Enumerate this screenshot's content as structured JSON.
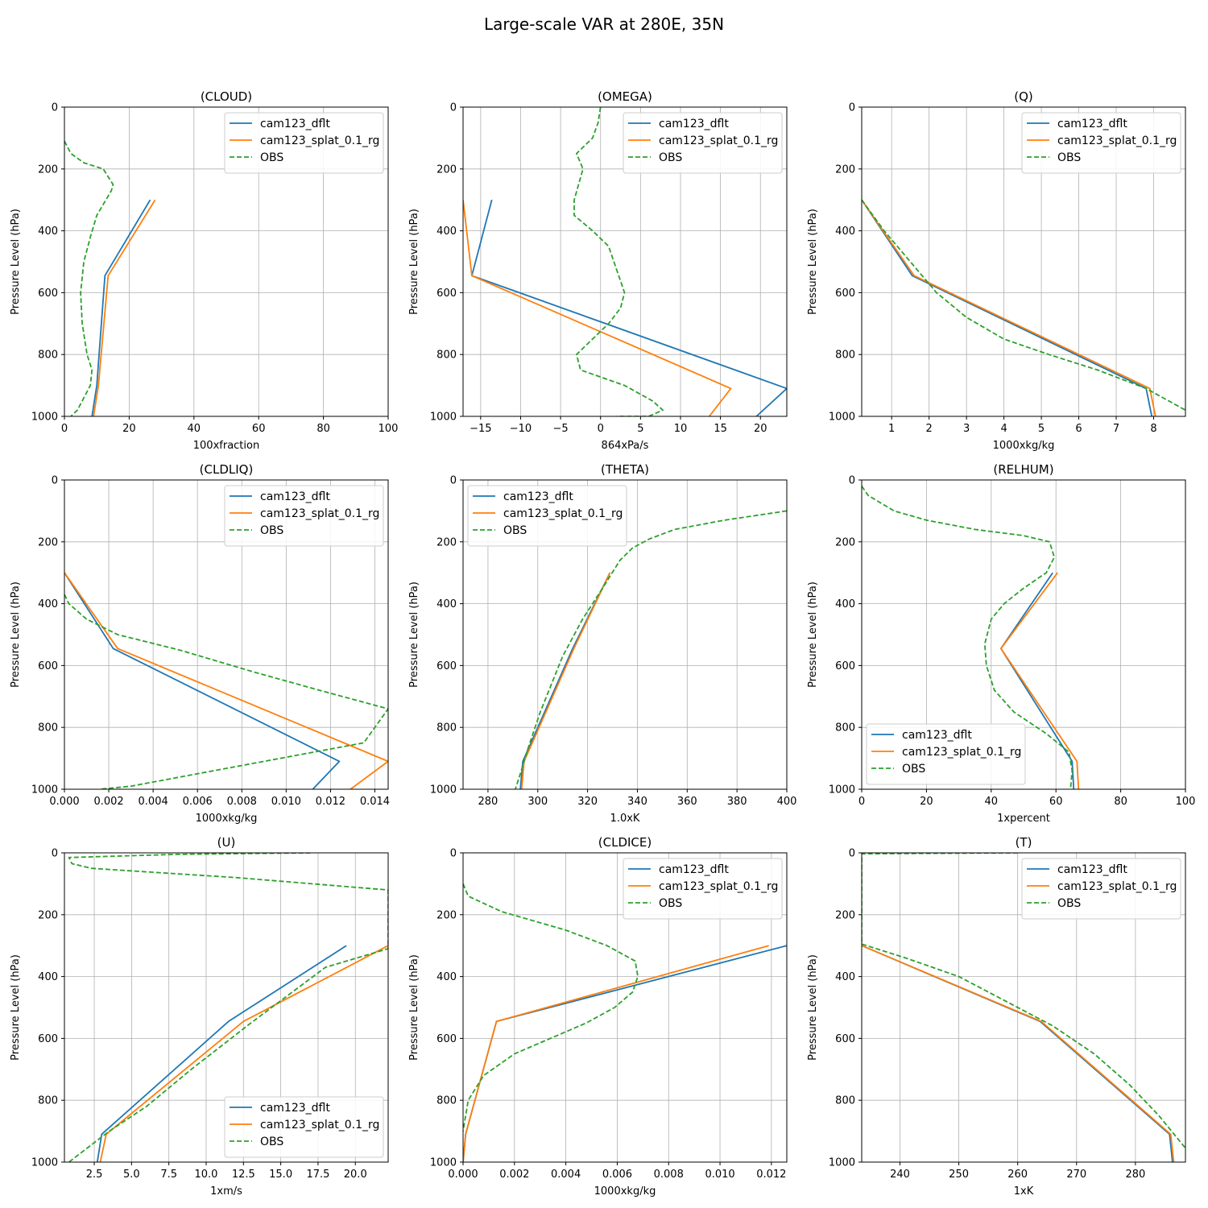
{
  "title": "Large-scale VAR at 280E, 35N",
  "series_names": [
    "cam123_dflt",
    "cam123_splat_0.1_rg",
    "OBS"
  ],
  "colors": {
    "cam123_dflt": "#1f77b4",
    "cam123_splat_0.1_rg": "#ff7f0e",
    "OBS": "#2ca02c"
  },
  "chart_data": [
    {
      "type": "line",
      "title": "(CLOUD)",
      "xlabel": "100xfraction",
      "ylabel": "Pressure Level (hPa)",
      "xlim": [
        0,
        100
      ],
      "ylim": [
        1000,
        0
      ],
      "y_inverted": true,
      "grid": true,
      "legend": "top-right",
      "xticks": [
        0,
        20,
        40,
        60,
        80,
        100
      ],
      "xtick_labels": [
        "0",
        "20",
        "40",
        "60",
        "80",
        "100"
      ],
      "yticks": [
        0,
        200,
        400,
        600,
        800,
        1000
      ],
      "ytick_labels": [
        "0",
        "200",
        "400",
        "600",
        "800",
        "1000"
      ],
      "series": [
        {
          "name": "cam123_dflt",
          "style": "solid",
          "x": [
            26.5,
            12.5,
            10.0,
            8.5
          ],
          "y": [
            300,
            545,
            900,
            1000
          ]
        },
        {
          "name": "cam123_splat_0.1_rg",
          "style": "solid",
          "x": [
            28,
            13.5,
            10.5,
            9.0
          ],
          "y": [
            300,
            545,
            900,
            1000
          ]
        },
        {
          "name": "OBS",
          "style": "dashed",
          "x": [
            0,
            2,
            6,
            12,
            15,
            14.5,
            10,
            8,
            6,
            5,
            5.5,
            7,
            8.5,
            8,
            6,
            4,
            2
          ],
          "y": [
            110,
            150,
            180,
            200,
            250,
            270,
            350,
            420,
            500,
            600,
            700,
            800,
            850,
            900,
            940,
            980,
            1000
          ]
        }
      ]
    },
    {
      "type": "line",
      "title": "(OMEGA)",
      "xlabel": "864xPa/s",
      "ylabel": "Pressure Level (hPa)",
      "xlim": [
        -17.2,
        23.3
      ],
      "ylim": [
        1000,
        0
      ],
      "y_inverted": true,
      "grid": true,
      "legend": "top-right",
      "xticks": [
        -15,
        -10,
        -5,
        0,
        5,
        10,
        15,
        20
      ],
      "xtick_labels": [
        "−15",
        "−10",
        "−5",
        "0",
        "5",
        "10",
        "15",
        "20"
      ],
      "yticks": [
        0,
        200,
        400,
        600,
        800,
        1000
      ],
      "ytick_labels": [
        "0",
        "200",
        "400",
        "600",
        "800",
        "1000"
      ],
      "series": [
        {
          "name": "cam123_dflt",
          "style": "solid",
          "x": [
            -13.6,
            -16.1,
            23.3,
            19.5
          ],
          "y": [
            300,
            545,
            910,
            1000
          ]
        },
        {
          "name": "cam123_splat_0.1_rg",
          "style": "solid",
          "x": [
            -17.2,
            -16.1,
            16.3,
            13.6
          ],
          "y": [
            300,
            545,
            910,
            1000
          ]
        },
        {
          "name": "OBS",
          "style": "dashed",
          "x": [
            0,
            -0.3,
            -1,
            -3,
            -2.2,
            -3.3,
            -3.3,
            -1,
            1,
            3,
            2.5,
            1,
            -3,
            -2.5,
            3,
            6.5,
            7.8,
            6,
            2
          ],
          "y": [
            0,
            50,
            100,
            150,
            200,
            300,
            350,
            400,
            450,
            600,
            650,
            700,
            800,
            850,
            900,
            950,
            980,
            1000,
            1000
          ]
        }
      ]
    },
    {
      "type": "line",
      "title": "(Q)",
      "xlabel": "1000xkg/kg",
      "ylabel": "Pressure Level (hPa)",
      "xlim": [
        0.2,
        8.85
      ],
      "ylim": [
        1000,
        0
      ],
      "y_inverted": true,
      "grid": true,
      "legend": "top-right",
      "xticks": [
        1,
        2,
        3,
        4,
        5,
        6,
        7,
        8
      ],
      "xtick_labels": [
        "1",
        "2",
        "3",
        "4",
        "5",
        "6",
        "7",
        "8"
      ],
      "yticks": [
        0,
        200,
        400,
        600,
        800,
        1000
      ],
      "ytick_labels": [
        "0",
        "200",
        "400",
        "600",
        "800",
        "1000"
      ],
      "series": [
        {
          "name": "cam123_dflt",
          "style": "solid",
          "x": [
            0.2,
            1.55,
            7.8,
            7.95
          ],
          "y": [
            300,
            545,
            910,
            1000
          ]
        },
        {
          "name": "cam123_splat_0.1_rg",
          "style": "solid",
          "x": [
            0.2,
            1.6,
            7.9,
            8.05
          ],
          "y": [
            300,
            545,
            910,
            1000
          ]
        },
        {
          "name": "OBS",
          "style": "dashed",
          "x": [
            0.2,
            0.8,
            1.5,
            2.2,
            3.0,
            4.0,
            5.2,
            6.5,
            7.8,
            8.85
          ],
          "y": [
            300,
            400,
            500,
            600,
            680,
            750,
            800,
            850,
            910,
            980
          ]
        }
      ]
    },
    {
      "type": "line",
      "title": "(CLDLIQ)",
      "xlabel": "1000xkg/kg",
      "ylabel": "Pressure Level (hPa)",
      "xlim": [
        0,
        0.0146
      ],
      "ylim": [
        1000,
        0
      ],
      "y_inverted": true,
      "grid": true,
      "legend": "top-right",
      "xticks": [
        0,
        0.002,
        0.004,
        0.006,
        0.008,
        0.01,
        0.012,
        0.014
      ],
      "xtick_labels": [
        "0.000",
        "0.002",
        "0.004",
        "0.006",
        "0.008",
        "0.010",
        "0.012",
        "0.014"
      ],
      "yticks": [
        0,
        200,
        400,
        600,
        800,
        1000
      ],
      "ytick_labels": [
        "0",
        "200",
        "400",
        "600",
        "800",
        "1000"
      ],
      "series": [
        {
          "name": "cam123_dflt",
          "style": "solid",
          "x": [
            0,
            0.0022,
            0.0124,
            0.0112
          ],
          "y": [
            300,
            545,
            910,
            1000
          ]
        },
        {
          "name": "cam123_splat_0.1_rg",
          "style": "solid",
          "x": [
            0,
            0.0024,
            0.0146,
            0.0129
          ],
          "y": [
            300,
            545,
            910,
            1000
          ]
        },
        {
          "name": "OBS",
          "style": "dashed",
          "x": [
            0,
            0.0002,
            0.001,
            0.0024,
            0.0052,
            0.0085,
            0.0115,
            0.0146,
            0.0135,
            0.009,
            0.006,
            0.003,
            0.0016
          ],
          "y": [
            370,
            400,
            450,
            500,
            550,
            620,
            680,
            740,
            850,
            910,
            950,
            990,
            1000
          ]
        }
      ]
    },
    {
      "type": "line",
      "title": "(THETA)",
      "xlabel": "1.0xK",
      "ylabel": "Pressure Level (hPa)",
      "xlim": [
        270,
        400
      ],
      "ylim": [
        1000,
        0
      ],
      "y_inverted": true,
      "grid": true,
      "legend": "top-left",
      "xticks": [
        280,
        300,
        320,
        340,
        360,
        380,
        400
      ],
      "xtick_labels": [
        "280",
        "300",
        "320",
        "340",
        "360",
        "380",
        "400"
      ],
      "yticks": [
        0,
        200,
        400,
        600,
        800,
        1000
      ],
      "ytick_labels": [
        "0",
        "200",
        "400",
        "600",
        "800",
        "1000"
      ],
      "series": [
        {
          "name": "cam123_dflt",
          "style": "solid",
          "x": [
            329,
            314,
            294,
            293
          ],
          "y": [
            300,
            545,
            910,
            1000
          ]
        },
        {
          "name": "cam123_splat_0.1_rg",
          "style": "solid",
          "x": [
            329,
            314.5,
            294.5,
            293.5
          ],
          "y": [
            300,
            545,
            910,
            1000
          ]
        },
        {
          "name": "OBS",
          "style": "dashed",
          "x": [
            400,
            375,
            355,
            345,
            338,
            333,
            326,
            318,
            310,
            301,
            296,
            293,
            291
          ],
          "y": [
            100,
            130,
            160,
            190,
            220,
            260,
            350,
            450,
            570,
            750,
            870,
            950,
            1000
          ]
        }
      ]
    },
    {
      "type": "line",
      "title": "(RELHUM)",
      "xlabel": "1xpercent",
      "ylabel": "Pressure Level (hPa)",
      "xlim": [
        0,
        100
      ],
      "ylim": [
        1000,
        0
      ],
      "y_inverted": true,
      "grid": true,
      "legend": "bottom-left",
      "xticks": [
        0,
        20,
        40,
        60,
        80,
        100
      ],
      "xtick_labels": [
        "0",
        "20",
        "40",
        "60",
        "80",
        "100"
      ],
      "yticks": [
        0,
        200,
        400,
        600,
        800,
        1000
      ],
      "ytick_labels": [
        "0",
        "200",
        "400",
        "600",
        "800",
        "1000"
      ],
      "series": [
        {
          "name": "cam123_dflt",
          "style": "solid",
          "x": [
            59,
            43,
            65,
            65.5
          ],
          "y": [
            300,
            545,
            910,
            1000
          ]
        },
        {
          "name": "cam123_splat_0.1_rg",
          "style": "solid",
          "x": [
            60.5,
            43,
            66.5,
            67
          ],
          "y": [
            300,
            545,
            910,
            1000
          ]
        },
        {
          "name": "OBS",
          "style": "dashed",
          "x": [
            0,
            2,
            10,
            20,
            35,
            50,
            58,
            59.5,
            57,
            50,
            44,
            40,
            38,
            38.5,
            41,
            47,
            57,
            64,
            65,
            64.5
          ],
          "y": [
            20,
            50,
            100,
            130,
            160,
            180,
            200,
            250,
            300,
            350,
            400,
            450,
            530,
            600,
            680,
            750,
            820,
            880,
            940,
            1000
          ]
        }
      ]
    },
    {
      "type": "line",
      "title": "(U)",
      "xlabel": "1xm/s",
      "ylabel": "Pressure Level (hPa)",
      "xlim": [
        0.5,
        22.2
      ],
      "ylim": [
        1000,
        0
      ],
      "y_inverted": true,
      "grid": true,
      "legend": "bottom-right",
      "xticks": [
        2.5,
        5.0,
        7.5,
        10.0,
        12.5,
        15.0,
        17.5,
        20.0
      ],
      "xtick_labels": [
        "2.5",
        "5.0",
        "7.5",
        "10.0",
        "12.5",
        "15.0",
        "17.5",
        "20.0"
      ],
      "yticks": [
        0,
        200,
        400,
        600,
        800,
        1000
      ],
      "ytick_labels": [
        "0",
        "200",
        "400",
        "600",
        "800",
        "1000"
      ],
      "series": [
        {
          "name": "cam123_dflt",
          "style": "solid",
          "x": [
            19.4,
            11.5,
            3.0,
            2.7
          ],
          "y": [
            300,
            545,
            910,
            1000
          ]
        },
        {
          "name": "cam123_splat_0.1_rg",
          "style": "solid",
          "x": [
            22.2,
            12.5,
            3.3,
            2.9
          ],
          "y": [
            300,
            545,
            910,
            1000
          ]
        },
        {
          "name": "OBS",
          "style": "dashed",
          "x": [
            17,
            8,
            0.8,
            1.0,
            2.3,
            12,
            22.2,
            22.2,
            18,
            13,
            9,
            6,
            3.5,
            0.8
          ],
          "y": [
            0,
            5,
            15,
            35,
            50,
            80,
            120,
            310,
            370,
            550,
            700,
            820,
            900,
            1000
          ]
        }
      ]
    },
    {
      "type": "line",
      "title": "(CLDICE)",
      "xlabel": "1000xkg/kg",
      "ylabel": "Pressure Level (hPa)",
      "xlim": [
        0,
        0.0126
      ],
      "ylim": [
        1000,
        0
      ],
      "y_inverted": true,
      "grid": true,
      "legend": "top-right",
      "xticks": [
        0,
        0.002,
        0.004,
        0.006,
        0.008,
        0.01,
        0.012
      ],
      "xtick_labels": [
        "0.000",
        "0.002",
        "0.004",
        "0.006",
        "0.008",
        "0.010",
        "0.012"
      ],
      "yticks": [
        0,
        200,
        400,
        600,
        800,
        1000
      ],
      "ytick_labels": [
        "0",
        "200",
        "400",
        "600",
        "800",
        "1000"
      ],
      "series": [
        {
          "name": "cam123_dflt",
          "style": "solid",
          "x": [
            0.0126,
            0.0013,
            0.0001,
            0.0
          ],
          "y": [
            300,
            545,
            910,
            1000
          ]
        },
        {
          "name": "cam123_splat_0.1_rg",
          "style": "solid",
          "x": [
            0.0119,
            0.0013,
            0.0001,
            0.0
          ],
          "y": [
            300,
            545,
            910,
            1000
          ]
        },
        {
          "name": "OBS",
          "style": "dashed",
          "x": [
            0.0,
            0.0002,
            0.0015,
            0.004,
            0.0056,
            0.0067,
            0.0068,
            0.0066,
            0.0059,
            0.0048,
            0.002,
            0.0008,
            0.0002,
            0.0
          ],
          "y": [
            100,
            140,
            190,
            250,
            300,
            350,
            400,
            450,
            500,
            550,
            650,
            720,
            800,
            900
          ]
        }
      ]
    },
    {
      "type": "line",
      "title": "(T)",
      "xlabel": "1xK",
      "ylabel": "Pressure Level (hPa)",
      "xlim": [
        233.5,
        288.5
      ],
      "ylim": [
        1000,
        0
      ],
      "y_inverted": true,
      "grid": true,
      "legend": "top-right",
      "xticks": [
        240,
        250,
        260,
        270,
        280
      ],
      "xtick_labels": [
        "240",
        "250",
        "260",
        "270",
        "280"
      ],
      "yticks": [
        0,
        200,
        400,
        600,
        800,
        1000
      ],
      "ytick_labels": [
        "0",
        "200",
        "400",
        "600",
        "800",
        "1000"
      ],
      "series": [
        {
          "name": "cam123_dflt",
          "style": "solid",
          "x": [
            233.5,
            263.8,
            285.8,
            286.3
          ],
          "y": [
            300,
            545,
            910,
            1000
          ]
        },
        {
          "name": "cam123_splat_0.1_rg",
          "style": "solid",
          "x": [
            233.5,
            264,
            286,
            286.5
          ],
          "y": [
            300,
            545,
            910,
            1000
          ]
        },
        {
          "name": "OBS",
          "style": "dashed",
          "x": [
            260,
            233.5,
            233.5,
            241,
            250,
            258,
            266,
            273,
            279,
            284,
            288.5
          ],
          "y": [
            0,
            3,
            295,
            340,
            400,
            480,
            560,
            650,
            750,
            850,
            955
          ]
        }
      ]
    }
  ]
}
